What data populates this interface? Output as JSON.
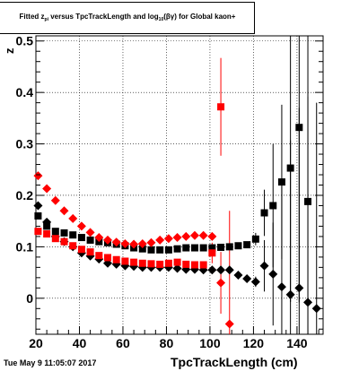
{
  "header": {
    "title_part1": "Fitted z",
    "title_sub1": "pi",
    "title_part2": " versus TpcTrackLength and log",
    "title_sub2": "10",
    "title_part3": "(βγ) for Global kaon+",
    "timestamp": "Tue May  9 11:05:07 2017"
  },
  "chart_data": {
    "type": "scatter",
    "title": "Fitted z_pi versus TpcTrackLength and log10(βγ) for Global kaon+",
    "xlabel": "TpcTrackLength (cm)",
    "ylabel": "z",
    "xlim": [
      20,
      152
    ],
    "ylim": [
      -0.07,
      0.51
    ],
    "x_ticks": [
      20,
      40,
      60,
      80,
      100,
      120,
      140
    ],
    "y_ticks": [
      0,
      0.1,
      0.2,
      0.3,
      0.4,
      0.5
    ],
    "y_tick_labels": [
      "0",
      "0.1",
      "0.2",
      "0.3",
      "0.4",
      "0.5"
    ],
    "grid": true,
    "series": [
      {
        "color": "#000000",
        "marker": "square",
        "points": [
          {
            "x": 21,
            "y": 0.16
          },
          {
            "x": 25,
            "y": 0.14
          },
          {
            "x": 29,
            "y": 0.13
          },
          {
            "x": 33,
            "y": 0.127
          },
          {
            "x": 37,
            "y": 0.123
          },
          {
            "x": 41,
            "y": 0.118
          },
          {
            "x": 45,
            "y": 0.113
          },
          {
            "x": 49,
            "y": 0.11
          },
          {
            "x": 53,
            "y": 0.108
          },
          {
            "x": 57,
            "y": 0.105
          },
          {
            "x": 61,
            "y": 0.102
          },
          {
            "x": 65,
            "y": 0.098
          },
          {
            "x": 69,
            "y": 0.096
          },
          {
            "x": 73,
            "y": 0.094
          },
          {
            "x": 77,
            "y": 0.094
          },
          {
            "x": 81,
            "y": 0.094
          },
          {
            "x": 85,
            "y": 0.096
          },
          {
            "x": 89,
            "y": 0.098
          },
          {
            "x": 93,
            "y": 0.098
          },
          {
            "x": 97,
            "y": 0.098
          },
          {
            "x": 101,
            "y": 0.098
          },
          {
            "x": 105,
            "y": 0.099
          },
          {
            "x": 109,
            "y": 0.1
          },
          {
            "x": 113,
            "y": 0.102
          },
          {
            "x": 117,
            "y": 0.104
          },
          {
            "x": 121,
            "y": 0.115,
            "err": 0.012
          },
          {
            "x": 125,
            "y": 0.166,
            "err": 0.045
          },
          {
            "x": 129,
            "y": 0.18,
            "err": 0.12
          },
          {
            "x": 133,
            "y": 0.226,
            "err": 0.15
          },
          {
            "x": 137,
            "y": 0.253,
            "err": 0.26
          },
          {
            "x": 141,
            "y": 0.332,
            "err": 0.34
          },
          {
            "x": 145,
            "y": 0.188,
            "err": 0.4
          }
        ]
      },
      {
        "color": "#000000",
        "marker": "diamond",
        "points": [
          {
            "x": 21,
            "y": 0.18
          },
          {
            "x": 25,
            "y": 0.148
          },
          {
            "x": 29,
            "y": 0.12
          },
          {
            "x": 33,
            "y": 0.11
          },
          {
            "x": 37,
            "y": 0.1
          },
          {
            "x": 41,
            "y": 0.088
          },
          {
            "x": 45,
            "y": 0.082
          },
          {
            "x": 49,
            "y": 0.076
          },
          {
            "x": 53,
            "y": 0.068
          },
          {
            "x": 57,
            "y": 0.066
          },
          {
            "x": 61,
            "y": 0.063
          },
          {
            "x": 65,
            "y": 0.062
          },
          {
            "x": 69,
            "y": 0.06
          },
          {
            "x": 73,
            "y": 0.06
          },
          {
            "x": 77,
            "y": 0.06
          },
          {
            "x": 81,
            "y": 0.06
          },
          {
            "x": 85,
            "y": 0.058
          },
          {
            "x": 89,
            "y": 0.056
          },
          {
            "x": 93,
            "y": 0.056
          },
          {
            "x": 97,
            "y": 0.055
          },
          {
            "x": 101,
            "y": 0.055
          },
          {
            "x": 105,
            "y": 0.055
          },
          {
            "x": 109,
            "y": 0.055
          },
          {
            "x": 113,
            "y": 0.045
          },
          {
            "x": 117,
            "y": 0.038
          },
          {
            "x": 121,
            "y": 0.032,
            "err": 0.01
          },
          {
            "x": 125,
            "y": 0.063,
            "err": 0.05
          },
          {
            "x": 129,
            "y": 0.047,
            "err": 0.1
          },
          {
            "x": 133,
            "y": 0.022,
            "err": 0.2
          },
          {
            "x": 137,
            "y": 0.007,
            "err": 0.3
          },
          {
            "x": 141,
            "y": 0.02,
            "err": 0.35
          },
          {
            "x": 145,
            "y": -0.008,
            "err": 0.4
          },
          {
            "x": 149,
            "y": -0.02,
            "err": 0.4
          }
        ]
      },
      {
        "color": "#ff0000",
        "marker": "square",
        "points": [
          {
            "x": 21,
            "y": 0.13
          },
          {
            "x": 25,
            "y": 0.125
          },
          {
            "x": 29,
            "y": 0.116
          },
          {
            "x": 33,
            "y": 0.11
          },
          {
            "x": 37,
            "y": 0.102
          },
          {
            "x": 41,
            "y": 0.095
          },
          {
            "x": 45,
            "y": 0.09
          },
          {
            "x": 49,
            "y": 0.083
          },
          {
            "x": 53,
            "y": 0.079
          },
          {
            "x": 57,
            "y": 0.075
          },
          {
            "x": 61,
            "y": 0.072
          },
          {
            "x": 65,
            "y": 0.07
          },
          {
            "x": 69,
            "y": 0.068
          },
          {
            "x": 73,
            "y": 0.067
          },
          {
            "x": 77,
            "y": 0.066
          },
          {
            "x": 81,
            "y": 0.068
          },
          {
            "x": 85,
            "y": 0.07
          },
          {
            "x": 89,
            "y": 0.066
          },
          {
            "x": 93,
            "y": 0.065
          },
          {
            "x": 97,
            "y": 0.065
          },
          {
            "x": 101,
            "y": 0.088,
            "err": 0.02
          },
          {
            "x": 105,
            "y": 0.372,
            "err": 0.095
          }
        ]
      },
      {
        "color": "#ff0000",
        "marker": "diamond",
        "points": [
          {
            "x": 21,
            "y": 0.238
          },
          {
            "x": 25,
            "y": 0.213
          },
          {
            "x": 29,
            "y": 0.19
          },
          {
            "x": 33,
            "y": 0.17
          },
          {
            "x": 37,
            "y": 0.155
          },
          {
            "x": 41,
            "y": 0.14
          },
          {
            "x": 45,
            "y": 0.128
          },
          {
            "x": 49,
            "y": 0.118
          },
          {
            "x": 53,
            "y": 0.113
          },
          {
            "x": 57,
            "y": 0.109
          },
          {
            "x": 61,
            "y": 0.106
          },
          {
            "x": 65,
            "y": 0.105
          },
          {
            "x": 69,
            "y": 0.106
          },
          {
            "x": 73,
            "y": 0.108
          },
          {
            "x": 77,
            "y": 0.113
          },
          {
            "x": 81,
            "y": 0.116
          },
          {
            "x": 85,
            "y": 0.118
          },
          {
            "x": 89,
            "y": 0.12
          },
          {
            "x": 93,
            "y": 0.122
          },
          {
            "x": 97,
            "y": 0.122
          },
          {
            "x": 101,
            "y": 0.12
          },
          {
            "x": 105,
            "y": 0.03,
            "err": 0.06
          },
          {
            "x": 109,
            "y": -0.05,
            "err": 0.22
          }
        ]
      }
    ]
  }
}
